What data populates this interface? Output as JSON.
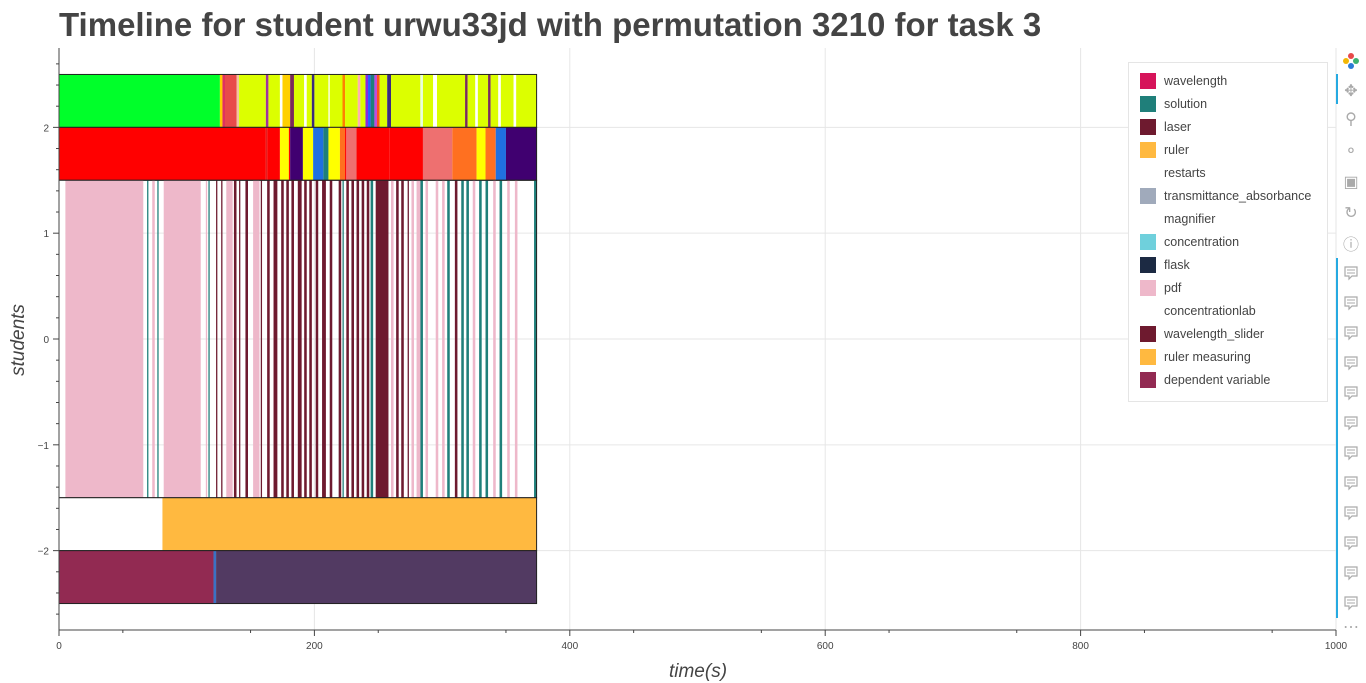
{
  "chart_data": {
    "type": "timeline",
    "title": "Timeline for student urwu33jd with permutation 3210 for task 3",
    "xlabel": "time(s)",
    "ylabel": "students",
    "xlim": [
      0,
      1000
    ],
    "ylim": [
      -2.75,
      2.75
    ],
    "xticks": [
      0,
      200,
      400,
      600,
      800,
      1000
    ],
    "xtick_labels": [
      "0",
      "200",
      "400",
      "600",
      "800",
      "1000"
    ],
    "yticks": [
      2,
      1,
      0,
      -1,
      -2
    ],
    "ytick_labels": [
      "2",
      "1",
      "0",
      "−1",
      "−2"
    ],
    "grid": true,
    "legend_position": "top-right",
    "legend": [
      {
        "label": "wavelength",
        "color": "#d6145a"
      },
      {
        "label": "solution",
        "color": "#1f7f7a"
      },
      {
        "label": "laser",
        "color": "#6e1a2f"
      },
      {
        "label": "ruler",
        "color": "#ffb940"
      },
      {
        "label": "restarts",
        "color": "#ffffff"
      },
      {
        "label": "transmittance_absorbance",
        "color": "#a0aabb"
      },
      {
        "label": "magnifier",
        "color": "#ffffff"
      },
      {
        "label": "concentration",
        "color": "#6fd0dc"
      },
      {
        "label": "flask",
        "color": "#1c2a43"
      },
      {
        "label": "pdf",
        "color": "#eeb8ca"
      },
      {
        "label": "concentrationlab",
        "color": "#ffffff"
      },
      {
        "label": "wavelength_slider",
        "color": "#6e1a2f"
      },
      {
        "label": "ruler measuring",
        "color": "#ffb940"
      },
      {
        "label": "dependent variable",
        "color": "#922a52"
      }
    ],
    "rows": [
      {
        "y_range": [
          2,
          2.5
        ],
        "segments": [
          {
            "start": 0,
            "end": 126,
            "color": "#00ff2a"
          },
          {
            "start": 126,
            "end": 128,
            "color": "#ffcc00"
          },
          {
            "start": 128,
            "end": 130,
            "color": "#e03060"
          },
          {
            "start": 130,
            "end": 139,
            "color": "#e84a4a"
          },
          {
            "start": 139,
            "end": 141,
            "color": "#f4c3a0"
          },
          {
            "start": 141,
            "end": 162,
            "color": "#dcff00"
          },
          {
            "start": 162,
            "end": 164,
            "color": "#a030a0"
          },
          {
            "start": 164,
            "end": 173,
            "color": "#dcff00"
          },
          {
            "start": 173,
            "end": 175,
            "color": "#ffffff"
          },
          {
            "start": 175,
            "end": 181,
            "color": "#ffd000"
          },
          {
            "start": 181,
            "end": 184,
            "color": "#7a2a5a"
          },
          {
            "start": 184,
            "end": 192,
            "color": "#dcff00"
          },
          {
            "start": 192,
            "end": 194,
            "color": "#ffffff"
          },
          {
            "start": 194,
            "end": 198,
            "color": "#dcff00"
          },
          {
            "start": 198,
            "end": 200,
            "color": "#3a2a80"
          },
          {
            "start": 200,
            "end": 211,
            "color": "#dcff00"
          },
          {
            "start": 211,
            "end": 212,
            "color": "#ffffff"
          },
          {
            "start": 212,
            "end": 222,
            "color": "#dcff00"
          },
          {
            "start": 222,
            "end": 224,
            "color": "#ff8000"
          },
          {
            "start": 224,
            "end": 234,
            "color": "#dcff00"
          },
          {
            "start": 234,
            "end": 236,
            "color": "#ffb0b0"
          },
          {
            "start": 236,
            "end": 240,
            "color": "#dcff00"
          },
          {
            "start": 240,
            "end": 242,
            "color": "#8a2be2"
          },
          {
            "start": 242,
            "end": 244,
            "color": "#2060ff"
          },
          {
            "start": 244,
            "end": 247,
            "color": "#1f7f7a"
          },
          {
            "start": 247,
            "end": 249,
            "color": "#c04ae0"
          },
          {
            "start": 249,
            "end": 251,
            "color": "#ff5020"
          },
          {
            "start": 251,
            "end": 257,
            "color": "#dcff00"
          },
          {
            "start": 257,
            "end": 260,
            "color": "#3a2a80"
          },
          {
            "start": 260,
            "end": 283,
            "color": "#dcff00"
          },
          {
            "start": 283,
            "end": 285,
            "color": "#e8ffe0"
          },
          {
            "start": 285,
            "end": 293,
            "color": "#dcff00"
          },
          {
            "start": 293,
            "end": 296,
            "color": "#ffffff"
          },
          {
            "start": 296,
            "end": 318,
            "color": "#dcff00"
          },
          {
            "start": 318,
            "end": 320,
            "color": "#7a2a5a"
          },
          {
            "start": 320,
            "end": 326,
            "color": "#dcff00"
          },
          {
            "start": 326,
            "end": 328,
            "color": "#ffffff"
          },
          {
            "start": 328,
            "end": 336,
            "color": "#dcff00"
          },
          {
            "start": 336,
            "end": 338,
            "color": "#7a2a5a"
          },
          {
            "start": 338,
            "end": 344,
            "color": "#dcff00"
          },
          {
            "start": 344,
            "end": 346,
            "color": "#ffffff"
          },
          {
            "start": 346,
            "end": 356,
            "color": "#dcff00"
          },
          {
            "start": 356,
            "end": 358,
            "color": "#ffffff"
          },
          {
            "start": 358,
            "end": 374,
            "color": "#dcff00"
          }
        ]
      },
      {
        "y_range": [
          1.5,
          2
        ],
        "segments": [
          {
            "start": 0,
            "end": 162,
            "color": "#ff0000"
          },
          {
            "start": 162,
            "end": 163,
            "color": "#e02020"
          },
          {
            "start": 163,
            "end": 173,
            "color": "#ff0000"
          },
          {
            "start": 173,
            "end": 180,
            "color": "#ffff00"
          },
          {
            "start": 180,
            "end": 181,
            "color": "#ff0000"
          },
          {
            "start": 181,
            "end": 191,
            "color": "#400070"
          },
          {
            "start": 191,
            "end": 199,
            "color": "#ffff00"
          },
          {
            "start": 199,
            "end": 207,
            "color": "#2070e0"
          },
          {
            "start": 207,
            "end": 211,
            "color": "#1f7f7a"
          },
          {
            "start": 211,
            "end": 220,
            "color": "#ffff00"
          },
          {
            "start": 220,
            "end": 224,
            "color": "#ff7020"
          },
          {
            "start": 224,
            "end": 225,
            "color": "#ff0000"
          },
          {
            "start": 225,
            "end": 233,
            "color": "#ee7070"
          },
          {
            "start": 233,
            "end": 259,
            "color": "#ff0000"
          },
          {
            "start": 259,
            "end": 285,
            "color": "#ff0000"
          },
          {
            "start": 285,
            "end": 308,
            "color": "#ee7070"
          },
          {
            "start": 308,
            "end": 327,
            "color": "#ff7020"
          },
          {
            "start": 327,
            "end": 334,
            "color": "#ffff00"
          },
          {
            "start": 334,
            "end": 342,
            "color": "#ff7020"
          },
          {
            "start": 342,
            "end": 350,
            "color": "#2070e0"
          },
          {
            "start": 350,
            "end": 374,
            "color": "#400070"
          }
        ]
      },
      {
        "y_range": [
          -1.5,
          1.5
        ],
        "segments": [
          {
            "start": 0,
            "end": 5,
            "color": "#ffffff"
          },
          {
            "start": 5,
            "end": 66,
            "color": "#eeb8ca"
          },
          {
            "start": 69,
            "end": 70,
            "color": "#1f7f7a"
          },
          {
            "start": 73,
            "end": 75,
            "color": "#eeb8ca"
          },
          {
            "start": 77,
            "end": 78,
            "color": "#1f7f7a"
          },
          {
            "start": 82,
            "end": 111,
            "color": "#eeb8ca"
          },
          {
            "start": 115,
            "end": 116,
            "color": "#eeb8ca"
          },
          {
            "start": 117,
            "end": 118,
            "color": "#1f7f7a"
          },
          {
            "start": 123,
            "end": 124,
            "color": "#6e1a2f"
          },
          {
            "start": 127,
            "end": 128,
            "color": "#6e1a2f"
          },
          {
            "start": 131,
            "end": 136,
            "color": "#eeb8ca"
          },
          {
            "start": 137,
            "end": 139,
            "color": "#6e1a2f"
          },
          {
            "start": 141,
            "end": 142,
            "color": "#6e1a2f"
          },
          {
            "start": 146,
            "end": 148,
            "color": "#6e1a2f"
          },
          {
            "start": 152,
            "end": 157,
            "color": "#eeb8ca"
          },
          {
            "start": 158,
            "end": 159,
            "color": "#6e1a2f"
          },
          {
            "start": 163,
            "end": 165,
            "color": "#6e1a2f"
          },
          {
            "start": 168,
            "end": 171,
            "color": "#6e1a2f"
          },
          {
            "start": 174,
            "end": 176,
            "color": "#6e1a2f"
          },
          {
            "start": 178,
            "end": 180,
            "color": "#6e1a2f"
          },
          {
            "start": 182,
            "end": 184,
            "color": "#6e1a2f"
          },
          {
            "start": 187,
            "end": 190,
            "color": "#6e1a2f"
          },
          {
            "start": 192,
            "end": 194,
            "color": "#6e1a2f"
          },
          {
            "start": 196,
            "end": 198,
            "color": "#6e1a2f"
          },
          {
            "start": 201,
            "end": 203,
            "color": "#6e1a2f"
          },
          {
            "start": 206,
            "end": 209,
            "color": "#6e1a2f"
          },
          {
            "start": 212,
            "end": 214,
            "color": "#6e1a2f"
          },
          {
            "start": 219,
            "end": 221,
            "color": "#6e1a2f"
          },
          {
            "start": 222,
            "end": 223,
            "color": "#1f7f7a"
          },
          {
            "start": 225,
            "end": 227,
            "color": "#6e1a2f"
          },
          {
            "start": 229,
            "end": 231,
            "color": "#6e1a2f"
          },
          {
            "start": 233,
            "end": 235,
            "color": "#6e1a2f"
          },
          {
            "start": 237,
            "end": 239,
            "color": "#6e1a2f"
          },
          {
            "start": 241,
            "end": 243,
            "color": "#6e1a2f"
          },
          {
            "start": 244,
            "end": 246,
            "color": "#1f7f7a"
          },
          {
            "start": 248,
            "end": 258,
            "color": "#6e1a2f"
          },
          {
            "start": 260,
            "end": 262,
            "color": "#eeb8ca"
          },
          {
            "start": 264,
            "end": 266,
            "color": "#6e1a2f"
          },
          {
            "start": 268,
            "end": 270,
            "color": "#6e1a2f"
          },
          {
            "start": 273,
            "end": 274,
            "color": "#6e1a2f"
          },
          {
            "start": 276,
            "end": 278,
            "color": "#eeb8ca"
          },
          {
            "start": 280,
            "end": 283,
            "color": "#eeb8ca"
          },
          {
            "start": 283,
            "end": 285,
            "color": "#1f7f7a"
          },
          {
            "start": 287,
            "end": 289,
            "color": "#eeb8ca"
          },
          {
            "start": 295,
            "end": 297,
            "color": "#eeb8ca"
          },
          {
            "start": 300,
            "end": 302,
            "color": "#eeb8ca"
          },
          {
            "start": 304,
            "end": 306,
            "color": "#1f7f7a"
          },
          {
            "start": 310,
            "end": 312,
            "color": "#6e1a2f"
          },
          {
            "start": 315,
            "end": 317,
            "color": "#1f7f7a"
          },
          {
            "start": 319,
            "end": 321,
            "color": "#1f7f7a"
          },
          {
            "start": 324,
            "end": 326,
            "color": "#eeb8ca"
          },
          {
            "start": 329,
            "end": 331,
            "color": "#1f7f7a"
          },
          {
            "start": 334,
            "end": 336,
            "color": "#1f7f7a"
          },
          {
            "start": 340,
            "end": 342,
            "color": "#eeb8ca"
          },
          {
            "start": 345,
            "end": 347,
            "color": "#1f7f7a"
          },
          {
            "start": 351,
            "end": 353,
            "color": "#eeb8ca"
          },
          {
            "start": 357,
            "end": 359,
            "color": "#eeb8ca"
          },
          {
            "start": 372,
            "end": 374,
            "color": "#1f7f7a"
          }
        ]
      },
      {
        "y_range": [
          -2,
          -1.5
        ],
        "segments": [
          {
            "start": 0,
            "end": 81,
            "color": "#ffffff"
          },
          {
            "start": 81,
            "end": 374,
            "color": "#ffb940"
          }
        ]
      },
      {
        "y_range": [
          -2.5,
          -2
        ],
        "segments": [
          {
            "start": 0,
            "end": 121,
            "color": "#922a52"
          },
          {
            "start": 121,
            "end": 123,
            "color": "#3a72c4"
          },
          {
            "start": 123,
            "end": 374,
            "color": "#523a62"
          }
        ]
      }
    ]
  },
  "toolbar": {
    "icons": [
      "bokeh-logo-icon",
      "pan-icon",
      "box-zoom-icon",
      "wheel-zoom-icon",
      "save-icon",
      "reset-icon",
      "help-icon",
      "hover-icon",
      "more-icon"
    ]
  }
}
